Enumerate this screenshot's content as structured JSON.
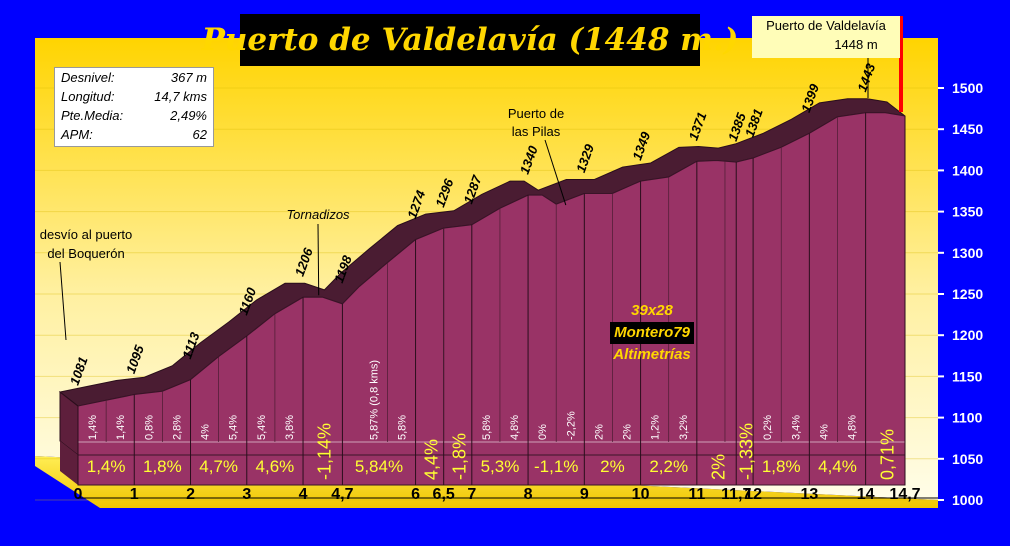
{
  "title": "Puerto de Valdelavía (1448 m.)",
  "stats": [
    {
      "label": "Desnivel:",
      "value": "367 m"
    },
    {
      "label": "Longitud:",
      "value": "14,7 kms"
    },
    {
      "label": "Pte.Media:",
      "value": "2,49%"
    },
    {
      "label": "APM:",
      "value": "62"
    }
  ],
  "summit_box": {
    "name": "Puerto de Valdelavía",
    "alt": "1448 m"
  },
  "signature": {
    "line1": "39x28",
    "line2": "Montero79",
    "line3": "Altimetrías"
  },
  "chart_data": {
    "type": "area",
    "xlabel": "",
    "ylabel": "",
    "ylim": [
      1000,
      1500
    ],
    "xlim": [
      0,
      14.7
    ],
    "yticks": [
      "1000",
      "1050",
      "1100",
      "1150",
      "1200",
      "1250",
      "1300",
      "1350",
      "1400",
      "1450",
      "1500"
    ],
    "xticks": [
      {
        "x": 0,
        "label": "0"
      },
      {
        "x": 1,
        "label": "1"
      },
      {
        "x": 2,
        "label": "2"
      },
      {
        "x": 3,
        "label": "3"
      },
      {
        "x": 4,
        "label": "4"
      },
      {
        "x": 4.7,
        "label": "4,7"
      },
      {
        "x": 6,
        "label": "6"
      },
      {
        "x": 6.5,
        "label": "6,5"
      },
      {
        "x": 7,
        "label": "7"
      },
      {
        "x": 8,
        "label": "8"
      },
      {
        "x": 9,
        "label": "9"
      },
      {
        "x": 10,
        "label": "10"
      },
      {
        "x": 11,
        "label": "11"
      },
      {
        "x": 11.7,
        "label": "11,7"
      },
      {
        "x": 12,
        "label": "12"
      },
      {
        "x": 13,
        "label": "13"
      },
      {
        "x": 14,
        "label": "14"
      },
      {
        "x": 14.7,
        "label": "14,7"
      }
    ],
    "profile_x": [
      0,
      0.5,
      1,
      1.5,
      2,
      2.5,
      3,
      3.5,
      4,
      4.35,
      4.7,
      5,
      5.5,
      6,
      6.5,
      7,
      7.5,
      8,
      8.25,
      8.5,
      9,
      9.5,
      10,
      10.5,
      11,
      11.35,
      11.7,
      12,
      12.5,
      13,
      13.5,
      14,
      14.35,
      14.7
    ],
    "profile_y": [
      1114,
      1121,
      1128,
      1132,
      1146,
      1174,
      1199,
      1226,
      1246,
      1246,
      1238,
      1259,
      1288,
      1316,
      1330,
      1334,
      1354,
      1370,
      1370,
      1359,
      1372,
      1372,
      1387,
      1392,
      1411,
      1412,
      1410,
      1415,
      1428,
      1445,
      1465,
      1470,
      1470,
      1466
    ],
    "altitude_labels": [
      {
        "x": 0,
        "label": "1081"
      },
      {
        "x": 1,
        "label": "1095"
      },
      {
        "x": 2,
        "label": "1113"
      },
      {
        "x": 3,
        "label": "1160"
      },
      {
        "x": 4,
        "label": "1206"
      },
      {
        "x": 4.7,
        "label": "1198"
      },
      {
        "x": 6,
        "label": "1274"
      },
      {
        "x": 6.5,
        "label": "1296"
      },
      {
        "x": 7,
        "label": "1287"
      },
      {
        "x": 8,
        "label": "1340"
      },
      {
        "x": 9,
        "label": "1329"
      },
      {
        "x": 10,
        "label": "1349"
      },
      {
        "x": 11,
        "label": "1371"
      },
      {
        "x": 11.7,
        "label": "1385"
      },
      {
        "x": 12,
        "label": "1381"
      },
      {
        "x": 13,
        "label": "1399"
      },
      {
        "x": 14,
        "label": "1443"
      }
    ],
    "half_km_gradients": [
      {
        "x": 0.25,
        "label": "1,4%"
      },
      {
        "x": 0.75,
        "label": "1,4%"
      },
      {
        "x": 1.25,
        "label": "0,8%"
      },
      {
        "x": 1.75,
        "label": "2,8%"
      },
      {
        "x": 2.25,
        "label": "4%"
      },
      {
        "x": 2.75,
        "label": "5,4%"
      },
      {
        "x": 3.25,
        "label": "5,4%"
      },
      {
        "x": 3.75,
        "label": "3,8%"
      },
      {
        "x": 5.25,
        "label": "5,87% (0,8 kms)"
      },
      {
        "x": 5.75,
        "label": "5,8%"
      },
      {
        "x": 7.25,
        "label": "5,8%"
      },
      {
        "x": 7.75,
        "label": "4,8%"
      },
      {
        "x": 8.25,
        "label": "0%"
      },
      {
        "x": 8.75,
        "label": "-2,2%"
      },
      {
        "x": 9.25,
        "label": "2%"
      },
      {
        "x": 9.75,
        "label": "2%"
      },
      {
        "x": 10.25,
        "label": "1,2%"
      },
      {
        "x": 10.75,
        "label": "3,2%"
      },
      {
        "x": 12.25,
        "label": "0,2%"
      },
      {
        "x": 12.75,
        "label": "3,4%"
      },
      {
        "x": 13.25,
        "label": "4%"
      },
      {
        "x": 13.75,
        "label": "4,8%"
      }
    ],
    "segment_gradients": [
      {
        "x": 0.5,
        "label": "1,4%",
        "vertical": false
      },
      {
        "x": 1.5,
        "label": "1,8%",
        "vertical": false
      },
      {
        "x": 2.5,
        "label": "4,7%",
        "vertical": false
      },
      {
        "x": 3.5,
        "label": "4,6%",
        "vertical": false
      },
      {
        "x": 4.35,
        "label": "-1,14%",
        "vertical": true
      },
      {
        "x": 5.35,
        "label": "5,84%",
        "vertical": false
      },
      {
        "x": 6.25,
        "label": "4,4%",
        "vertical": true
      },
      {
        "x": 6.75,
        "label": "-1,8%",
        "vertical": true
      },
      {
        "x": 7.5,
        "label": "5,3%",
        "vertical": false
      },
      {
        "x": 8.5,
        "label": "-1,1%",
        "vertical": false
      },
      {
        "x": 9.5,
        "label": "2%",
        "vertical": false
      },
      {
        "x": 10.5,
        "label": "2,2%",
        "vertical": false
      },
      {
        "x": 11.35,
        "label": "2%",
        "vertical": true
      },
      {
        "x": 11.85,
        "label": "-1,33%",
        "vertical": true
      },
      {
        "x": 12.5,
        "label": "1,8%",
        "vertical": false
      },
      {
        "x": 13.5,
        "label": "4,4%",
        "vertical": false
      },
      {
        "x": 14.35,
        "label": "0,71%",
        "vertical": true
      }
    ],
    "annotations": [
      {
        "label": "desvío al puerto",
        "label2": "del Boquerón",
        "x": 0
      },
      {
        "label": "Tornadizos",
        "label2": "",
        "x": 4.35
      },
      {
        "label": "Puerto de",
        "label2": "las Pilas",
        "x": 8.6
      },
      {
        "label": "",
        "label2": "",
        "x": 14.7
      }
    ],
    "colors": {
      "background": "#0000ff",
      "panel_top": "#ffd700",
      "panel_bottom": "#fffde0",
      "profile_fill": "#993366",
      "profile_top": "#4a1c32",
      "label_yellow": "#ffff33",
      "summit_line": "#ff0000"
    }
  }
}
